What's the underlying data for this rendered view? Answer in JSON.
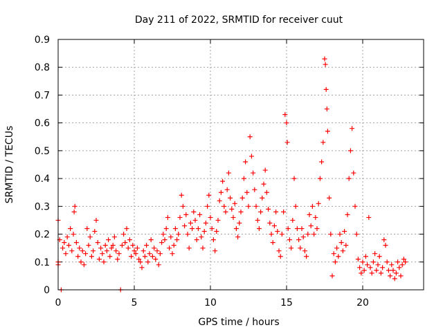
{
  "chart_data": {
    "type": "scatter",
    "title": "Day 211 of 2022, SRMTID for receiver cuut",
    "xlabel": "GPS time / hours",
    "ylabel": "SRMTID / TECUs",
    "xlim": [
      0,
      24
    ],
    "ylim": [
      0,
      0.9
    ],
    "xticks": [
      0,
      5,
      10,
      15,
      20
    ],
    "xtick_labels": [
      "0",
      "5",
      "10",
      "15",
      "20"
    ],
    "yticks": [
      0,
      0.1,
      0.2,
      0.3,
      0.4,
      0.5,
      0.6,
      0.7,
      0.8,
      0.9
    ],
    "ytick_labels": [
      "0",
      "0.1",
      "0.2",
      "0.3",
      "0.4",
      "0.5",
      "0.6",
      "0.7",
      "0.8",
      "0.9"
    ],
    "grid": true,
    "marker": "+",
    "color": "#ff0000",
    "series": [
      {
        "name": "SRMTID",
        "points": [
          [
            0.0,
            0.25
          ],
          [
            0.0,
            0.1
          ],
          [
            0.0,
            0.09
          ],
          [
            0.1,
            0.18
          ],
          [
            0.2,
            0.0
          ],
          [
            0.3,
            0.15
          ],
          [
            0.4,
            0.17
          ],
          [
            0.5,
            0.13
          ],
          [
            0.6,
            0.19
          ],
          [
            0.7,
            0.16
          ],
          [
            0.8,
            0.22
          ],
          [
            0.9,
            0.14
          ],
          [
            1.0,
            0.2
          ],
          [
            1.05,
            0.28
          ],
          [
            1.1,
            0.3
          ],
          [
            1.2,
            0.17
          ],
          [
            1.3,
            0.12
          ],
          [
            1.4,
            0.15
          ],
          [
            1.5,
            0.1
          ],
          [
            1.6,
            0.14
          ],
          [
            1.7,
            0.09
          ],
          [
            1.8,
            0.13
          ],
          [
            1.9,
            0.22
          ],
          [
            2.0,
            0.16
          ],
          [
            2.1,
            0.19
          ],
          [
            2.2,
            0.12
          ],
          [
            2.3,
            0.14
          ],
          [
            2.4,
            0.21
          ],
          [
            2.5,
            0.25
          ],
          [
            2.6,
            0.17
          ],
          [
            2.7,
            0.11
          ],
          [
            2.8,
            0.15
          ],
          [
            2.9,
            0.13
          ],
          [
            3.0,
            0.1
          ],
          [
            3.1,
            0.16
          ],
          [
            3.2,
            0.14
          ],
          [
            3.3,
            0.18
          ],
          [
            3.4,
            0.12
          ],
          [
            3.5,
            0.15
          ],
          [
            3.6,
            0.16
          ],
          [
            3.7,
            0.19
          ],
          [
            3.8,
            0.14
          ],
          [
            3.9,
            0.11
          ],
          [
            4.0,
            0.13
          ],
          [
            4.1,
            0.0
          ],
          [
            4.2,
            0.16
          ],
          [
            4.3,
            0.2
          ],
          [
            4.4,
            0.17
          ],
          [
            4.5,
            0.22
          ],
          [
            4.6,
            0.15
          ],
          [
            4.7,
            0.18
          ],
          [
            4.8,
            0.12
          ],
          [
            4.9,
            0.16
          ],
          [
            5.0,
            0.14
          ],
          [
            5.1,
            0.13
          ],
          [
            5.2,
            0.15
          ],
          [
            5.3,
            0.11
          ],
          [
            5.4,
            0.1
          ],
          [
            5.5,
            0.08
          ],
          [
            5.6,
            0.14
          ],
          [
            5.7,
            0.12
          ],
          [
            5.8,
            0.16
          ],
          [
            5.9,
            0.1
          ],
          [
            6.0,
            0.13
          ],
          [
            6.1,
            0.18
          ],
          [
            6.2,
            0.12
          ],
          [
            6.3,
            0.15
          ],
          [
            6.4,
            0.11
          ],
          [
            6.5,
            0.14
          ],
          [
            6.6,
            0.09
          ],
          [
            6.7,
            0.13
          ],
          [
            6.8,
            0.17
          ],
          [
            6.9,
            0.2
          ],
          [
            7.0,
            0.18
          ],
          [
            7.1,
            0.22
          ],
          [
            7.2,
            0.26
          ],
          [
            7.3,
            0.15
          ],
          [
            7.4,
            0.19
          ],
          [
            7.5,
            0.13
          ],
          [
            7.6,
            0.16
          ],
          [
            7.7,
            0.22
          ],
          [
            7.8,
            0.18
          ],
          [
            7.9,
            0.2
          ],
          [
            8.0,
            0.26
          ],
          [
            8.1,
            0.34
          ],
          [
            8.2,
            0.3
          ],
          [
            8.3,
            0.23
          ],
          [
            8.4,
            0.27
          ],
          [
            8.5,
            0.2
          ],
          [
            8.6,
            0.15
          ],
          [
            8.7,
            0.24
          ],
          [
            8.8,
            0.22
          ],
          [
            8.9,
            0.28
          ],
          [
            9.0,
            0.25
          ],
          [
            9.1,
            0.18
          ],
          [
            9.2,
            0.22
          ],
          [
            9.3,
            0.27
          ],
          [
            9.4,
            0.19
          ],
          [
            9.5,
            0.15
          ],
          [
            9.6,
            0.21
          ],
          [
            9.7,
            0.24
          ],
          [
            9.8,
            0.3
          ],
          [
            9.9,
            0.34
          ],
          [
            10.0,
            0.26
          ],
          [
            10.1,
            0.22
          ],
          [
            10.2,
            0.18
          ],
          [
            10.3,
            0.14
          ],
          [
            10.4,
            0.21
          ],
          [
            10.5,
            0.25
          ],
          [
            10.6,
            0.32
          ],
          [
            10.7,
            0.35
          ],
          [
            10.8,
            0.39
          ],
          [
            10.9,
            0.3
          ],
          [
            11.0,
            0.28
          ],
          [
            11.1,
            0.36
          ],
          [
            11.2,
            0.42
          ],
          [
            11.3,
            0.33
          ],
          [
            11.4,
            0.29
          ],
          [
            11.5,
            0.26
          ],
          [
            11.6,
            0.31
          ],
          [
            11.7,
            0.22
          ],
          [
            11.8,
            0.19
          ],
          [
            11.9,
            0.24
          ],
          [
            12.0,
            0.28
          ],
          [
            12.1,
            0.33
          ],
          [
            12.2,
            0.4
          ],
          [
            12.3,
            0.46
          ],
          [
            12.4,
            0.35
          ],
          [
            12.5,
            0.3
          ],
          [
            12.6,
            0.55
          ],
          [
            12.7,
            0.48
          ],
          [
            12.8,
            0.42
          ],
          [
            12.9,
            0.36
          ],
          [
            13.0,
            0.3
          ],
          [
            13.1,
            0.25
          ],
          [
            13.2,
            0.22
          ],
          [
            13.3,
            0.28
          ],
          [
            13.4,
            0.33
          ],
          [
            13.5,
            0.38
          ],
          [
            13.6,
            0.43
          ],
          [
            13.7,
            0.35
          ],
          [
            13.8,
            0.29
          ],
          [
            13.9,
            0.24
          ],
          [
            14.0,
            0.2
          ],
          [
            14.1,
            0.17
          ],
          [
            14.2,
            0.23
          ],
          [
            14.3,
            0.28
          ],
          [
            14.4,
            0.21
          ],
          [
            14.5,
            0.14
          ],
          [
            14.6,
            0.12
          ],
          [
            14.7,
            0.2
          ],
          [
            14.8,
            0.28
          ],
          [
            14.9,
            0.63
          ],
          [
            15.0,
            0.6
          ],
          [
            15.05,
            0.53
          ],
          [
            15.1,
            0.22
          ],
          [
            15.2,
            0.18
          ],
          [
            15.3,
            0.15
          ],
          [
            15.4,
            0.25
          ],
          [
            15.5,
            0.4
          ],
          [
            15.6,
            0.3
          ],
          [
            15.7,
            0.22
          ],
          [
            15.8,
            0.18
          ],
          [
            15.9,
            0.15
          ],
          [
            16.0,
            0.22
          ],
          [
            16.1,
            0.19
          ],
          [
            16.2,
            0.14
          ],
          [
            16.3,
            0.12
          ],
          [
            16.4,
            0.2
          ],
          [
            16.5,
            0.27
          ],
          [
            16.6,
            0.23
          ],
          [
            16.7,
            0.3
          ],
          [
            16.8,
            0.2
          ],
          [
            16.9,
            0.26
          ],
          [
            17.0,
            0.22
          ],
          [
            17.1,
            0.31
          ],
          [
            17.2,
            0.4
          ],
          [
            17.3,
            0.46
          ],
          [
            17.4,
            0.53
          ],
          [
            17.5,
            0.83
          ],
          [
            17.55,
            0.81
          ],
          [
            17.6,
            0.72
          ],
          [
            17.65,
            0.65
          ],
          [
            17.7,
            0.57
          ],
          [
            17.8,
            0.33
          ],
          [
            17.9,
            0.2
          ],
          [
            18.0,
            0.05
          ],
          [
            18.1,
            0.13
          ],
          [
            18.2,
            0.1
          ],
          [
            18.3,
            0.15
          ],
          [
            18.4,
            0.12
          ],
          [
            18.5,
            0.2
          ],
          [
            18.6,
            0.17
          ],
          [
            18.7,
            0.14
          ],
          [
            18.8,
            0.21
          ],
          [
            18.9,
            0.16
          ],
          [
            19.0,
            0.27
          ],
          [
            19.1,
            0.4
          ],
          [
            19.2,
            0.5
          ],
          [
            19.3,
            0.58
          ],
          [
            19.4,
            0.42
          ],
          [
            19.5,
            0.3
          ],
          [
            19.6,
            0.2
          ],
          [
            19.7,
            0.11
          ],
          [
            19.8,
            0.08
          ],
          [
            19.9,
            0.06
          ],
          [
            20.0,
            0.1
          ],
          [
            20.1,
            0.07
          ],
          [
            20.2,
            0.12
          ],
          [
            20.3,
            0.09
          ],
          [
            20.4,
            0.26
          ],
          [
            20.5,
            0.08
          ],
          [
            20.6,
            0.06
          ],
          [
            20.7,
            0.1
          ],
          [
            20.8,
            0.13
          ],
          [
            20.9,
            0.07
          ],
          [
            21.0,
            0.09
          ],
          [
            21.1,
            0.12
          ],
          [
            21.2,
            0.06
          ],
          [
            21.3,
            0.08
          ],
          [
            21.4,
            0.18
          ],
          [
            21.5,
            0.16
          ],
          [
            21.6,
            0.1
          ],
          [
            21.7,
            0.07
          ],
          [
            21.8,
            0.05
          ],
          [
            21.9,
            0.09
          ],
          [
            22.0,
            0.07
          ],
          [
            22.1,
            0.04
          ],
          [
            22.2,
            0.06
          ],
          [
            22.3,
            0.1
          ],
          [
            22.4,
            0.08
          ],
          [
            22.5,
            0.05
          ],
          [
            22.6,
            0.09
          ],
          [
            22.7,
            0.11
          ],
          [
            22.8,
            0.1
          ]
        ]
      }
    ]
  }
}
